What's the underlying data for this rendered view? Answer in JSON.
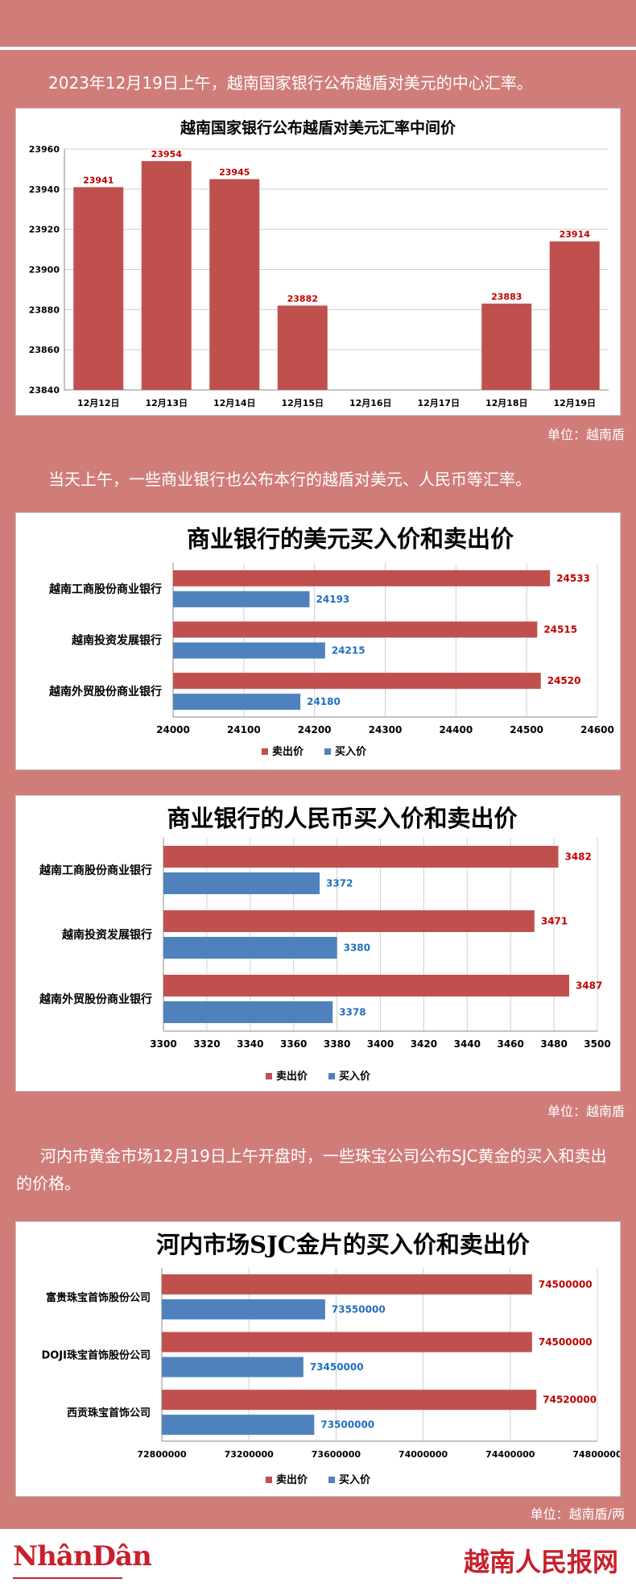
{
  "text": {
    "p1": "2023年12月19日上午，越南国家银行公布越盾对美元的中心汇率。",
    "p2": "当天上午，一些商业银行也公布本行的越盾对美元、人民币等汇率。",
    "p3": "河内市黄金市场12月19日上午开盘时，一些珠宝公司公布SJC黄金的买入和卖出的价格。",
    "unit1": "单位：越南盾",
    "unit2": "单位：越南盾",
    "unit3": "单位：越南盾/两"
  },
  "footer": {
    "logo_left": "NhânDân",
    "logo_right": "越南人民报网"
  },
  "colors": {
    "background": "#d07d7a",
    "sell": "#c0504d",
    "buy": "#4f81bd",
    "sell_label": "#c00000",
    "buy_label": "#1f6fc0"
  },
  "chart_data": [
    {
      "type": "bar",
      "title": "越南国家银行公布越盾对美元汇率中间价",
      "categories": [
        "12月12日",
        "12月13日",
        "12月14日",
        "12月15日",
        "12月16日",
        "12月17日",
        "12月18日",
        "12月19日"
      ],
      "values": [
        23941,
        23954,
        23945,
        23882,
        null,
        null,
        23883,
        23914
      ],
      "data_labels": [
        "23941",
        "23954",
        "23945",
        "23882",
        "",
        "",
        "23883",
        "23914"
      ],
      "ylim": [
        23840,
        23960
      ],
      "yticks": [
        23840,
        23860,
        23880,
        23900,
        23920,
        23940,
        23960
      ],
      "grid": true
    },
    {
      "type": "bar",
      "orientation": "horizontal",
      "title": "商业银行的美元买入价和卖出价",
      "categories": [
        "越南工商股份商业银行",
        "越南投资发展银行",
        "越南外贸股份商业银行"
      ],
      "series": [
        {
          "name": "卖出价",
          "values": [
            24533,
            24515,
            24520
          ]
        },
        {
          "name": "买入价",
          "values": [
            24193,
            24215,
            24180
          ]
        }
      ],
      "xlim": [
        24000,
        24600
      ],
      "xticks": [
        24000,
        24100,
        24200,
        24300,
        24400,
        24500,
        24600
      ],
      "legend": "bottom",
      "grid": true
    },
    {
      "type": "bar",
      "orientation": "horizontal",
      "title": "商业银行的人民币买入价和卖出价",
      "categories": [
        "越南工商股份商业银行",
        "越南投资发展银行",
        "越南外贸股份商业银行"
      ],
      "series": [
        {
          "name": "卖出价",
          "values": [
            3482,
            3471,
            3487
          ]
        },
        {
          "name": "买入价",
          "values": [
            3372,
            3380,
            3378
          ]
        }
      ],
      "xlim": [
        3300,
        3500
      ],
      "xticks": [
        3300,
        3320,
        3340,
        3360,
        3380,
        3400,
        3420,
        3440,
        3460,
        3480,
        3500
      ],
      "legend": "bottom",
      "grid": true
    },
    {
      "type": "bar",
      "orientation": "horizontal",
      "title": "河内市场SJC金片的买入价和卖出价",
      "categories": [
        "富贵珠宝首饰股份公司",
        "DOJI珠宝首饰股份公司",
        "西贡珠宝首饰公司"
      ],
      "series": [
        {
          "name": "卖出价",
          "values": [
            74500000,
            74500000,
            74520000
          ]
        },
        {
          "name": "买入价",
          "values": [
            73550000,
            73450000,
            73500000
          ]
        }
      ],
      "xlim": [
        72800000,
        74800000
      ],
      "xticks": [
        72800000,
        73200000,
        73600000,
        74000000,
        74400000,
        74800000
      ],
      "legend": "bottom",
      "grid": true
    }
  ]
}
